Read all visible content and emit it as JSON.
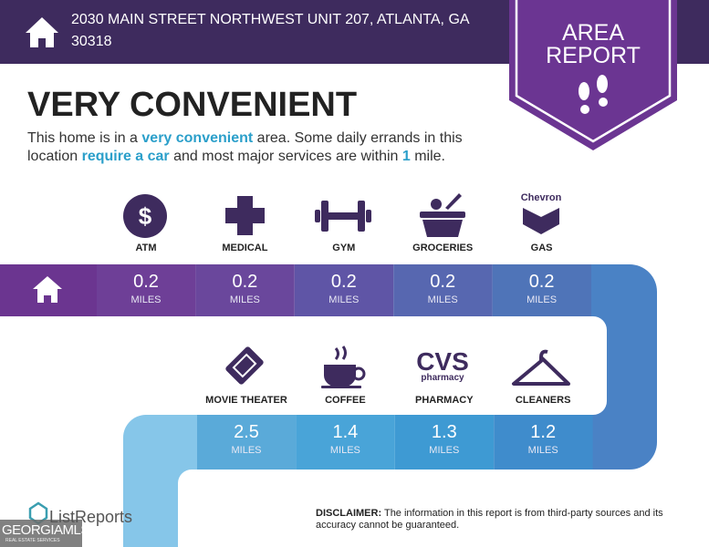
{
  "header": {
    "address": "2030 MAIN STREET NORTHWEST UNIT 207, ATLANTA, GA 30318",
    "badge": [
      "AREA",
      "REPORT"
    ]
  },
  "headline": "VERY CONVENIENT",
  "description": [
    "This home is in a ",
    "very convenient",
    " area. Some daily errands in this location ",
    "require a car",
    " and most major services are within ",
    "1",
    " mile."
  ],
  "row1": [
    {
      "label": "ATM",
      "icon_text": "$",
      "distance": "0.2",
      "unit": "MILES"
    },
    {
      "label": "MEDICAL",
      "distance": "0.2",
      "unit": "MILES"
    },
    {
      "label": "GYM",
      "distance": "0.2",
      "unit": "MILES"
    },
    {
      "label": "GROCERIES",
      "distance": "0.2",
      "unit": "MILES"
    },
    {
      "label": "GAS",
      "icon_text": "Chevron",
      "distance": "0.2",
      "unit": "MILES"
    }
  ],
  "row2": [
    {
      "label": "MOVIE THEATER",
      "distance": "2.5",
      "unit": "MILES"
    },
    {
      "label": "COFFEE",
      "distance": "1.4",
      "unit": "MILES"
    },
    {
      "label": "PHARMACY",
      "icon_text": [
        "CVS",
        "pharmacy"
      ],
      "distance": "1.3",
      "unit": "MILES"
    },
    {
      "label": "CLEANERS",
      "distance": "1.2",
      "unit": "MILES"
    }
  ],
  "footer": {
    "brand": "ListReports",
    "disclaimer_label": "DISCLAIMER:",
    "disclaimer": "The information in this report is from third-party sources and its accuracy cannot be guaranteed.",
    "watermark": "GEORGIAMLS",
    "watermark_sub": "REAL ESTATE SERVICES"
  }
}
